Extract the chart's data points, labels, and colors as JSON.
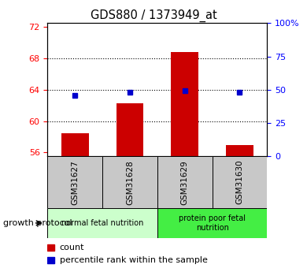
{
  "title": "GDS880 / 1373949_at",
  "samples": [
    "GSM31627",
    "GSM31628",
    "GSM31629",
    "GSM31630"
  ],
  "count_values": [
    58.5,
    62.3,
    68.8,
    56.9
  ],
  "percentile_values": [
    46.0,
    48.0,
    49.5,
    48.0
  ],
  "ylim_left": [
    55.5,
    72.5
  ],
  "ylim_right": [
    0,
    100
  ],
  "yticks_left": [
    56,
    60,
    64,
    68,
    72
  ],
  "yticks_right": [
    0,
    25,
    50,
    75,
    100
  ],
  "ytick_labels_right": [
    "0",
    "25",
    "50",
    "75",
    "100%"
  ],
  "bar_color": "#cc0000",
  "dot_color": "#0000cc",
  "bar_width": 0.5,
  "groups": [
    {
      "label": "normal fetal nutrition",
      "samples": [
        0,
        1
      ],
      "color": "#ccffcc"
    },
    {
      "label": "protein poor fetal\nnutrition",
      "samples": [
        2,
        3
      ],
      "color": "#44ee44"
    }
  ],
  "group_label": "growth protocol",
  "legend_count": "count",
  "legend_percentile": "percentile rank within the sample",
  "plot_bg": "#ffffff",
  "label_box_color": "#c8c8c8",
  "grid_yticks": [
    60,
    64,
    68
  ]
}
